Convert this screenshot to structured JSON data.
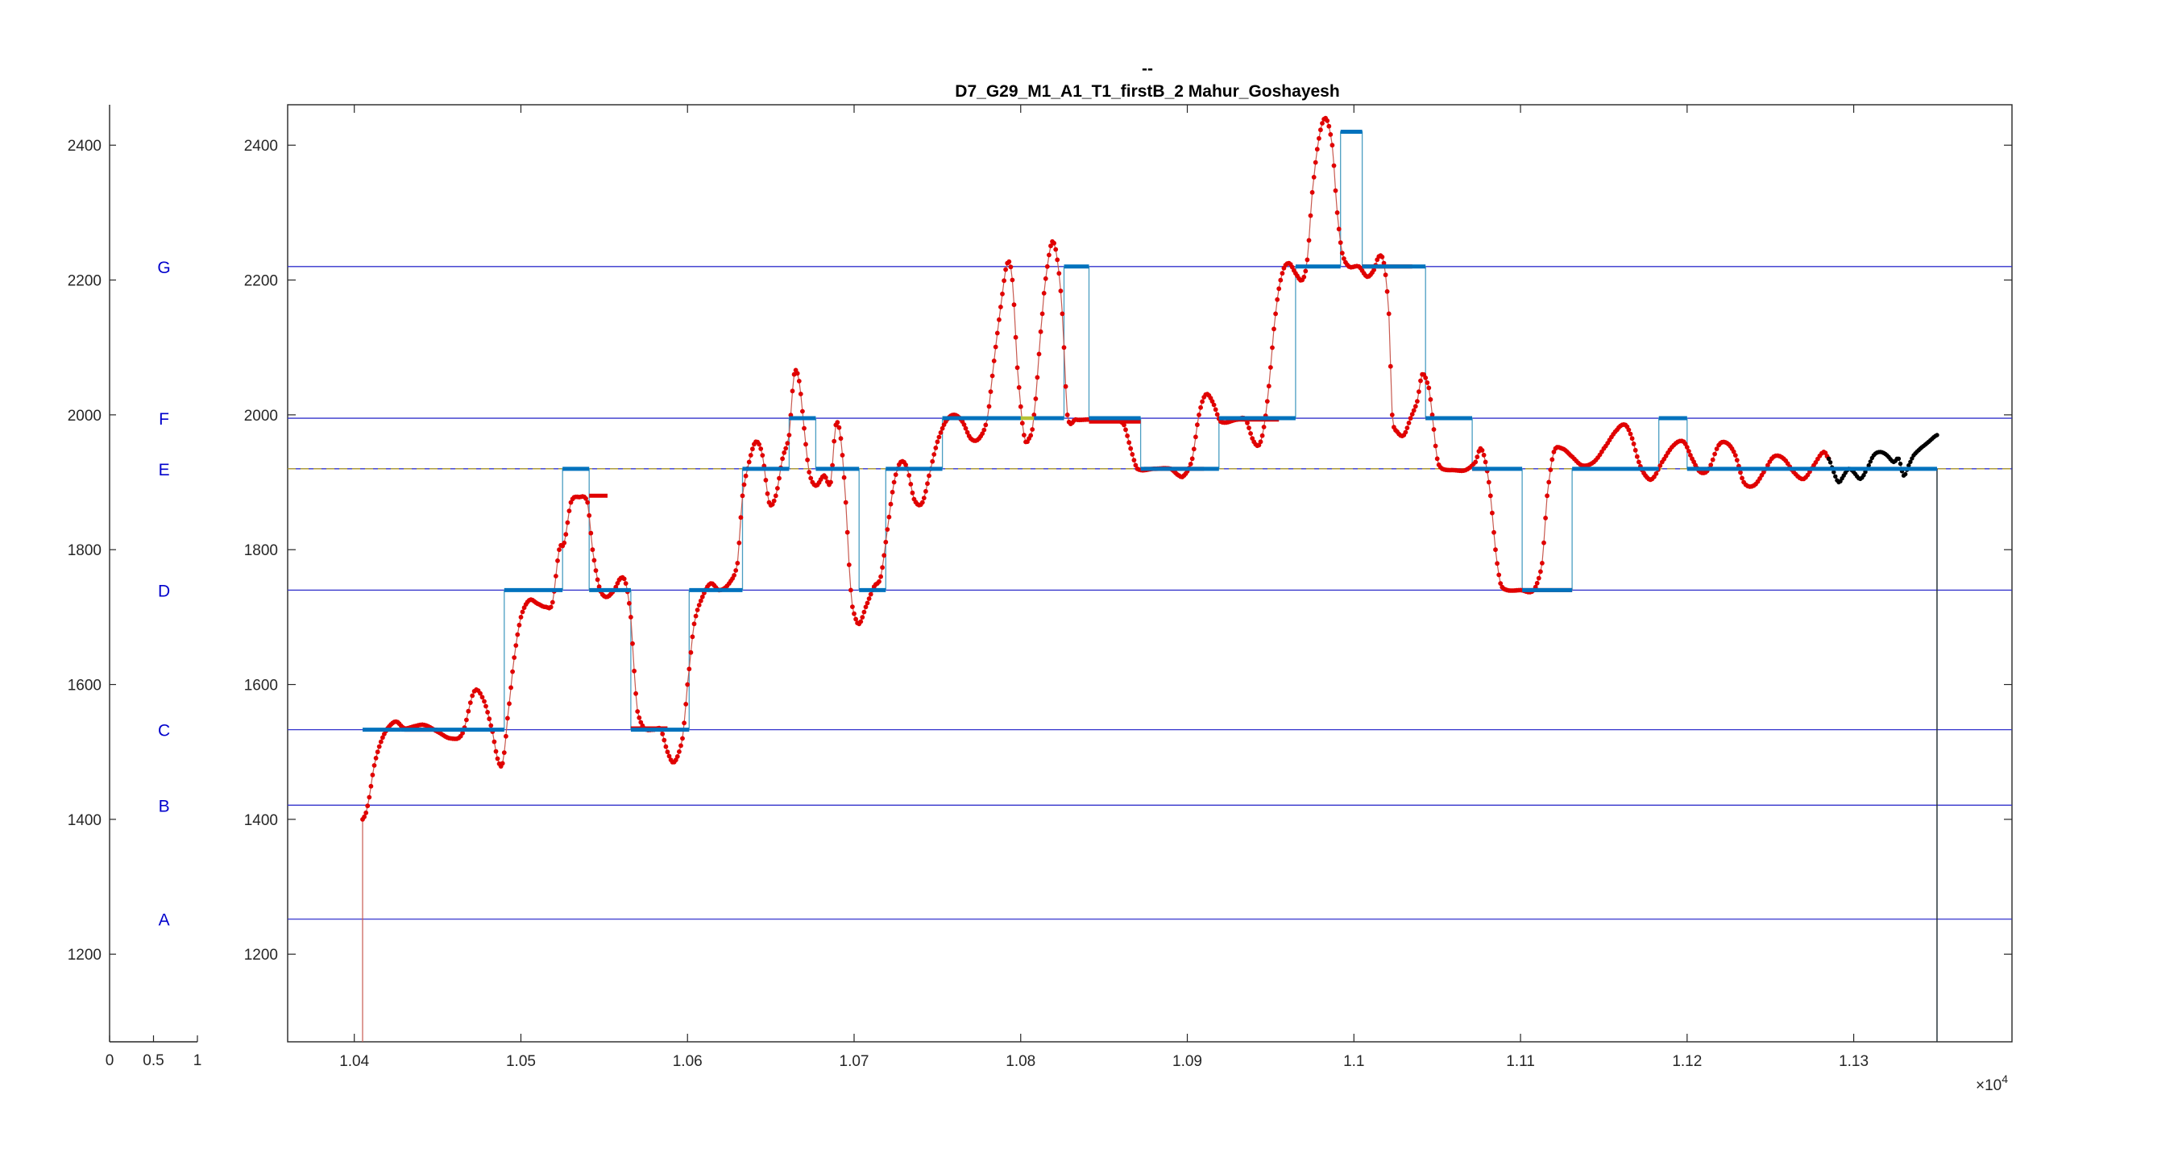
{
  "title_line1": "--",
  "title_line2": "D7_G29_M1_A1_T1_firstB_2 Mahur_Goshayesh",
  "x_exponent_label": "×10",
  "x_exponent_power": "4",
  "colors": {
    "axes": "#262626",
    "reference_line": "#3333cc",
    "note_label": "#0000cc",
    "pitch_points": "#e00000",
    "pitch_line": "#c85a50",
    "tail_points": "#000000",
    "note_segments": "#0072bd",
    "step_line": "#4a9ec2",
    "note_tail_segments": "#b5c234",
    "dashed_line": "#b5a22a"
  },
  "chart_data": [
    {
      "type": "line",
      "role": "note reference axis",
      "xlim": [
        0,
        1
      ],
      "ylim": [
        1070,
        2460
      ],
      "x_ticks": [
        0,
        0.5,
        1
      ],
      "x_tick_labels": [
        "0",
        "0.5",
        "1"
      ],
      "y_ticks": [
        1200,
        1400,
        1600,
        1800,
        2000,
        2200,
        2400
      ],
      "y_tick_labels": [
        "1200",
        "1400",
        "1600",
        "1800",
        "2000",
        "2200",
        "2400"
      ],
      "notes": [
        {
          "label": "A",
          "y": 1252
        },
        {
          "label": "B",
          "y": 1421
        },
        {
          "label": "C",
          "y": 1533
        },
        {
          "label": "D",
          "y": 1740
        },
        {
          "label": "E",
          "y": 1920
        },
        {
          "label": "F",
          "y": 1995
        },
        {
          "label": "G",
          "y": 2220
        }
      ]
    },
    {
      "type": "line",
      "role": "pitch contour",
      "xlim": [
        10360,
        11395
      ],
      "ylim": [
        1070,
        2460
      ],
      "x_ticks": [
        10400,
        10500,
        10600,
        10700,
        10800,
        10900,
        11000,
        11100,
        11200,
        11300
      ],
      "x_tick_labels": [
        "1.04",
        "1.05",
        "1.06",
        "1.07",
        "1.08",
        "1.09",
        "1.1",
        "1.11",
        "1.12",
        "1.13"
      ],
      "y_ticks": [
        1200,
        1400,
        1600,
        1800,
        2000,
        2200,
        2400
      ],
      "y_tick_labels": [
        "1200",
        "1400",
        "1600",
        "1800",
        "2000",
        "2200",
        "2400"
      ],
      "grid": false,
      "reference_lines": [
        1252,
        1421,
        1533,
        1740,
        1920,
        1995,
        2220
      ],
      "dashed_line": 1920,
      "end_line_x": 11350,
      "pitch_keypoints": [
        [
          10405,
          1070
        ],
        [
          10405,
          1400
        ],
        [
          10408,
          1420
        ],
        [
          10412,
          1480
        ],
        [
          10416,
          1515
        ],
        [
          10420,
          1535
        ],
        [
          10425,
          1545
        ],
        [
          10430,
          1535
        ],
        [
          10436,
          1538
        ],
        [
          10442,
          1540
        ],
        [
          10450,
          1530
        ],
        [
          10458,
          1520
        ],
        [
          10465,
          1528
        ],
        [
          10472,
          1590
        ],
        [
          10478,
          1575
        ],
        [
          10483,
          1530
        ],
        [
          10486,
          1490
        ],
        [
          10489,
          1483
        ],
        [
          10492,
          1550
        ],
        [
          10496,
          1640
        ],
        [
          10500,
          1700
        ],
        [
          10505,
          1725
        ],
        [
          10510,
          1720
        ],
        [
          10515,
          1715
        ],
        [
          10519,
          1722
        ],
        [
          10523,
          1800
        ],
        [
          10526,
          1810
        ],
        [
          10530,
          1870
        ],
        [
          10535,
          1878
        ],
        [
          10540,
          1870
        ],
        [
          10543,
          1800
        ],
        [
          10547,
          1745
        ],
        [
          10551,
          1730
        ],
        [
          10556,
          1740
        ],
        [
          10560,
          1758
        ],
        [
          10563,
          1750
        ],
        [
          10566,
          1700
        ],
        [
          10568,
          1620
        ],
        [
          10570,
          1560
        ],
        [
          10574,
          1535
        ],
        [
          10580,
          1533
        ],
        [
          10584,
          1533
        ],
        [
          10588,
          1500
        ],
        [
          10592,
          1485
        ],
        [
          10597,
          1520
        ],
        [
          10600,
          1600
        ],
        [
          10604,
          1690
        ],
        [
          10609,
          1730
        ],
        [
          10614,
          1750
        ],
        [
          10619,
          1740
        ],
        [
          10625,
          1750
        ],
        [
          10630,
          1780
        ],
        [
          10633,
          1880
        ],
        [
          10637,
          1930
        ],
        [
          10641,
          1960
        ],
        [
          10645,
          1940
        ],
        [
          10649,
          1870
        ],
        [
          10653,
          1880
        ],
        [
          10657,
          1935
        ],
        [
          10661,
          1970
        ],
        [
          10664,
          2060
        ],
        [
          10667,
          2050
        ],
        [
          10670,
          1980
        ],
        [
          10673,
          1915
        ],
        [
          10677,
          1895
        ],
        [
          10682,
          1910
        ],
        [
          10686,
          1900
        ],
        [
          10689,
          1985
        ],
        [
          10692,
          1965
        ],
        [
          10695,
          1870
        ],
        [
          10698,
          1740
        ],
        [
          10700,
          1705
        ],
        [
          10703,
          1690
        ],
        [
          10707,
          1715
        ],
        [
          10712,
          1745
        ],
        [
          10716,
          1760
        ],
        [
          10720,
          1830
        ],
        [
          10724,
          1900
        ],
        [
          10728,
          1930
        ],
        [
          10732,
          1920
        ],
        [
          10736,
          1875
        ],
        [
          10741,
          1870
        ],
        [
          10746,
          1920
        ],
        [
          10750,
          1960
        ],
        [
          10755,
          1990
        ],
        [
          10760,
          2000
        ],
        [
          10765,
          1990
        ],
        [
          10770,
          1965
        ],
        [
          10775,
          1965
        ],
        [
          10780,
          1995
        ],
        [
          10784,
          2080
        ],
        [
          10788,
          2160
        ],
        [
          10792,
          2225
        ],
        [
          10795,
          2200
        ],
        [
          10798,
          2070
        ],
        [
          10802,
          1970
        ],
        [
          10805,
          1965
        ],
        [
          10808,
          2000
        ],
        [
          10813,
          2150
        ],
        [
          10816,
          2220
        ],
        [
          10819,
          2257
        ],
        [
          10822,
          2230
        ],
        [
          10825,
          2150
        ],
        [
          10828,
          2000
        ],
        [
          10833,
          1993
        ],
        [
          10840,
          1993
        ],
        [
          10848,
          1993
        ],
        [
          10856,
          1993
        ],
        [
          10862,
          1985
        ],
        [
          10866,
          1950
        ],
        [
          10870,
          1920
        ],
        [
          10880,
          1920
        ],
        [
          10890,
          1920
        ],
        [
          10895,
          1910
        ],
        [
          10898,
          1910
        ],
        [
          10903,
          1935
        ],
        [
          10907,
          2000
        ],
        [
          10911,
          2030
        ],
        [
          10915,
          2020
        ],
        [
          10920,
          1990
        ],
        [
          10930,
          1993
        ],
        [
          10935,
          1993
        ],
        [
          10940,
          1960
        ],
        [
          10944,
          1960
        ],
        [
          10948,
          2020
        ],
        [
          10953,
          2150
        ],
        [
          10957,
          2210
        ],
        [
          10961,
          2225
        ],
        [
          10965,
          2210
        ],
        [
          10969,
          2200
        ],
        [
          10972,
          2230
        ],
        [
          10975,
          2330
        ],
        [
          10979,
          2410
        ],
        [
          10983,
          2440
        ],
        [
          10987,
          2400
        ],
        [
          10990,
          2300
        ],
        [
          10993,
          2240
        ],
        [
          10997,
          2220
        ],
        [
          11003,
          2220
        ],
        [
          11008,
          2205
        ],
        [
          11012,
          2215
        ],
        [
          11015,
          2235
        ],
        [
          11018,
          2225
        ],
        [
          11021,
          2150
        ],
        [
          11023,
          2000
        ],
        [
          11026,
          1975
        ],
        [
          11030,
          1970
        ],
        [
          11034,
          1995
        ],
        [
          11038,
          2020
        ],
        [
          11041,
          2060
        ],
        [
          11045,
          2040
        ],
        [
          11047,
          2000
        ],
        [
          11050,
          1935
        ],
        [
          11053,
          1920
        ],
        [
          11060,
          1918
        ],
        [
          11067,
          1918
        ],
        [
          11073,
          1930
        ],
        [
          11076,
          1950
        ],
        [
          11079,
          1930
        ],
        [
          11082,
          1880
        ],
        [
          11085,
          1800
        ],
        [
          11088,
          1750
        ],
        [
          11092,
          1740
        ],
        [
          11100,
          1740
        ],
        [
          11108,
          1740
        ],
        [
          11113,
          1780
        ],
        [
          11116,
          1880
        ],
        [
          11120,
          1945
        ],
        [
          11125,
          1950
        ],
        [
          11130,
          1940
        ],
        [
          11137,
          1925
        ],
        [
          11144,
          1930
        ],
        [
          11150,
          1950
        ],
        [
          11158,
          1978
        ],
        [
          11163,
          1985
        ],
        [
          11167,
          1965
        ],
        [
          11171,
          1930
        ],
        [
          11175,
          1910
        ],
        [
          11179,
          1905
        ],
        [
          11185,
          1930
        ],
        [
          11192,
          1955
        ],
        [
          11198,
          1960
        ],
        [
          11203,
          1935
        ],
        [
          11208,
          1915
        ],
        [
          11213,
          1920
        ],
        [
          11219,
          1955
        ],
        [
          11224,
          1958
        ],
        [
          11229,
          1940
        ],
        [
          11234,
          1900
        ],
        [
          11240,
          1895
        ],
        [
          11246,
          1915
        ],
        [
          11252,
          1938
        ],
        [
          11258,
          1935
        ],
        [
          11264,
          1915
        ],
        [
          11270,
          1905
        ],
        [
          11276,
          1925
        ],
        [
          11282,
          1945
        ],
        [
          11285,
          1935
        ]
      ],
      "tail_keypoints": [
        [
          11285,
          1935
        ],
        [
          11288,
          1915
        ],
        [
          11291,
          1900
        ],
        [
          11294,
          1910
        ],
        [
          11297,
          1920
        ],
        [
          11300,
          1915
        ],
        [
          11304,
          1905
        ],
        [
          11308,
          1920
        ],
        [
          11312,
          1940
        ],
        [
          11316,
          1945
        ],
        [
          11320,
          1940
        ],
        [
          11324,
          1930
        ],
        [
          11327,
          1935
        ],
        [
          11330,
          1910
        ],
        [
          11333,
          1925
        ],
        [
          11336,
          1940
        ],
        [
          11340,
          1950
        ],
        [
          11345,
          1960
        ],
        [
          11350,
          1970
        ]
      ],
      "step_path": [
        [
          10405,
          1533
        ],
        [
          10428,
          1533
        ],
        [
          10428,
          1533
        ],
        [
          10490,
          1533
        ],
        [
          10490,
          1740
        ],
        [
          10525,
          1740
        ],
        [
          10525,
          1920
        ],
        [
          10541,
          1920
        ],
        [
          10541,
          1740
        ],
        [
          10566,
          1740
        ],
        [
          10566,
          1533
        ],
        [
          10601,
          1533
        ],
        [
          10601,
          1740
        ],
        [
          10633,
          1740
        ],
        [
          10633,
          1920
        ],
        [
          10661,
          1920
        ],
        [
          10661,
          1995
        ],
        [
          10677,
          1995
        ],
        [
          10677,
          1920
        ],
        [
          10703,
          1920
        ],
        [
          10703,
          1740
        ],
        [
          10719,
          1740
        ],
        [
          10719,
          1920
        ],
        [
          10753,
          1920
        ],
        [
          10753,
          1995
        ],
        [
          10826,
          1995
        ],
        [
          10826,
          2220
        ],
        [
          10841,
          2220
        ],
        [
          10841,
          1995
        ],
        [
          10872,
          1995
        ],
        [
          10872,
          1920
        ],
        [
          10919,
          1920
        ],
        [
          10919,
          1995
        ],
        [
          10965,
          1995
        ],
        [
          10965,
          2220
        ],
        [
          10992,
          2220
        ],
        [
          10992,
          2420
        ],
        [
          11005,
          2420
        ],
        [
          11005,
          2220
        ],
        [
          11043,
          2220
        ],
        [
          11043,
          1995
        ],
        [
          11071,
          1995
        ],
        [
          11071,
          1920
        ],
        [
          11101,
          1920
        ],
        [
          11101,
          1740
        ],
        [
          11131,
          1740
        ],
        [
          11131,
          1920
        ],
        [
          11183,
          1920
        ],
        [
          11183,
          1995
        ],
        [
          11200,
          1995
        ],
        [
          11200,
          1920
        ],
        [
          11350,
          1920
        ],
        [
          11350,
          1070
        ]
      ],
      "note_segments": [
        [
          10405,
          10428,
          1533
        ],
        [
          10428,
          10490,
          1533
        ],
        [
          10490,
          10525,
          1740
        ],
        [
          10525,
          10541,
          1920
        ],
        [
          10541,
          10566,
          1740
        ],
        [
          10566,
          10601,
          1533
        ],
        [
          10601,
          10633,
          1740
        ],
        [
          10633,
          10661,
          1920
        ],
        [
          10661,
          10677,
          1995
        ],
        [
          10677,
          10703,
          1920
        ],
        [
          10703,
          10719,
          1740
        ],
        [
          10719,
          10753,
          1920
        ],
        [
          10753,
          10800,
          1995
        ],
        [
          10808,
          10826,
          1995
        ],
        [
          10826,
          10841,
          2220
        ],
        [
          10841,
          10872,
          1995
        ],
        [
          10872,
          10919,
          1920
        ],
        [
          10919,
          10965,
          1995
        ],
        [
          10965,
          10992,
          2220
        ],
        [
          10992,
          11005,
          2420
        ],
        [
          11005,
          11043,
          2220
        ],
        [
          11043,
          11071,
          1995
        ],
        [
          11071,
          11101,
          1920
        ],
        [
          11101,
          11131,
          1740
        ],
        [
          11131,
          11183,
          1920
        ],
        [
          11183,
          11200,
          1995
        ],
        [
          11200,
          11350,
          1920
        ]
      ],
      "red_bars": [
        [
          10430,
          10450,
          1533
        ],
        [
          10541,
          10552,
          1880
        ],
        [
          10566,
          10588,
          1535
        ],
        [
          10661,
          10672,
          1995
        ],
        [
          10841,
          10872,
          1990
        ],
        [
          10874,
          10910,
          1920
        ],
        [
          10930,
          10955,
          1993
        ],
        [
          11005,
          11035,
          2220
        ],
        [
          11043,
          11062,
          1995
        ],
        [
          11071,
          11080,
          1920
        ],
        [
          11101,
          11131,
          1740
        ]
      ],
      "yellow_segments": [
        [
          10541,
          10566,
          1740
        ],
        [
          10753,
          10808,
          1995
        ],
        [
          11200,
          11230,
          1920
        ]
      ]
    }
  ]
}
